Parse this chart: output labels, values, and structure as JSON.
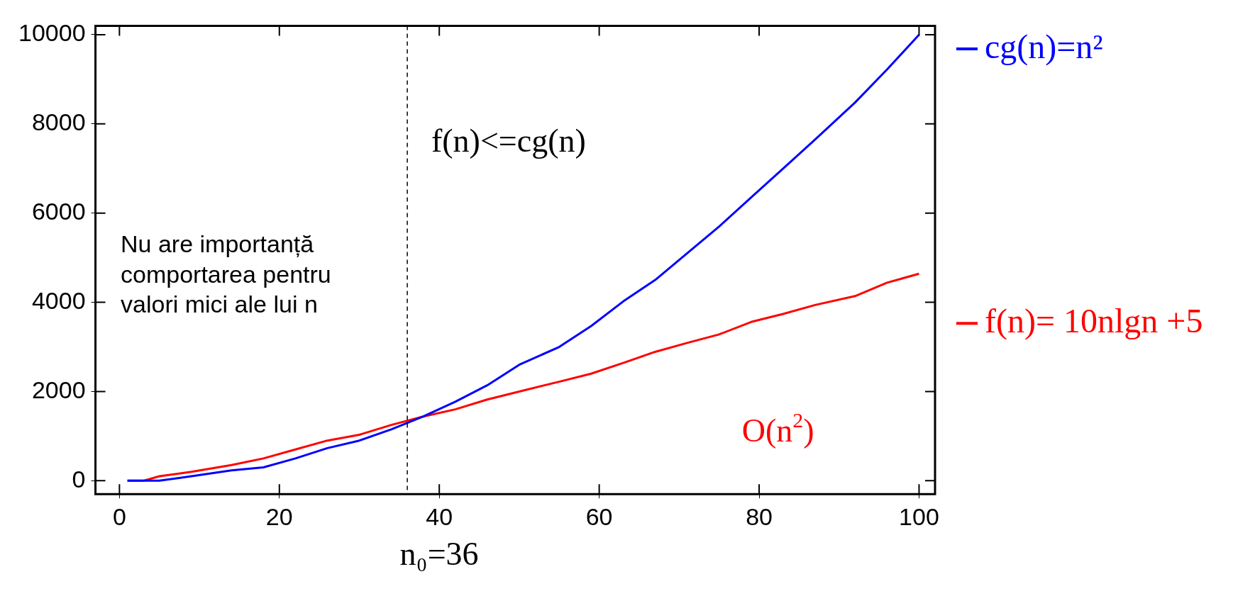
{
  "chart_data": {
    "type": "line",
    "x": [
      1,
      3,
      5,
      9,
      14,
      18,
      22,
      26,
      30,
      34,
      38,
      42,
      46,
      50,
      55,
      59,
      63,
      67,
      71,
      75,
      79,
      83,
      87,
      92,
      96,
      100
    ],
    "series": [
      {
        "name": "cg(n)=n²",
        "color": "#0000ff",
        "values": [
          0,
          0,
          0,
          100,
          230,
          300,
          500,
          730,
          900,
          1150,
          1440,
          1770,
          2140,
          2600,
          3000,
          3470,
          4020,
          4500,
          5100,
          5700,
          6350,
          7000,
          7650,
          8480,
          9220,
          10000
        ]
      },
      {
        "name": "f(n)= 10nlgn +5",
        "color": "#ff0000",
        "values": [
          0,
          0,
          100,
          200,
          350,
          500,
          700,
          900,
          1030,
          1250,
          1440,
          1600,
          1820,
          2000,
          2220,
          2400,
          2640,
          2890,
          3090,
          3280,
          3560,
          3740,
          3940,
          4140,
          4440,
          4640
        ]
      }
    ],
    "xlim": [
      -3,
      102
    ],
    "ylim": [
      -300,
      10200
    ],
    "xticks": [
      0,
      20,
      40,
      60,
      80,
      100
    ],
    "yticks": [
      0,
      2000,
      4000,
      6000,
      8000,
      10000
    ],
    "ref_lines": [
      {
        "axis": "x",
        "value": 36,
        "label": "n₀=36",
        "color": "#000000",
        "line_style": "dashed"
      }
    ],
    "annotations": [
      "f(n)<=cg(n)",
      "Nu are importanță\ncomportarea pentru\nvalori mici ale lui n",
      "O(n$^{2}$)"
    ],
    "grid": false,
    "legend": "right",
    "marker": "none",
    "line_style": "solid"
  }
}
